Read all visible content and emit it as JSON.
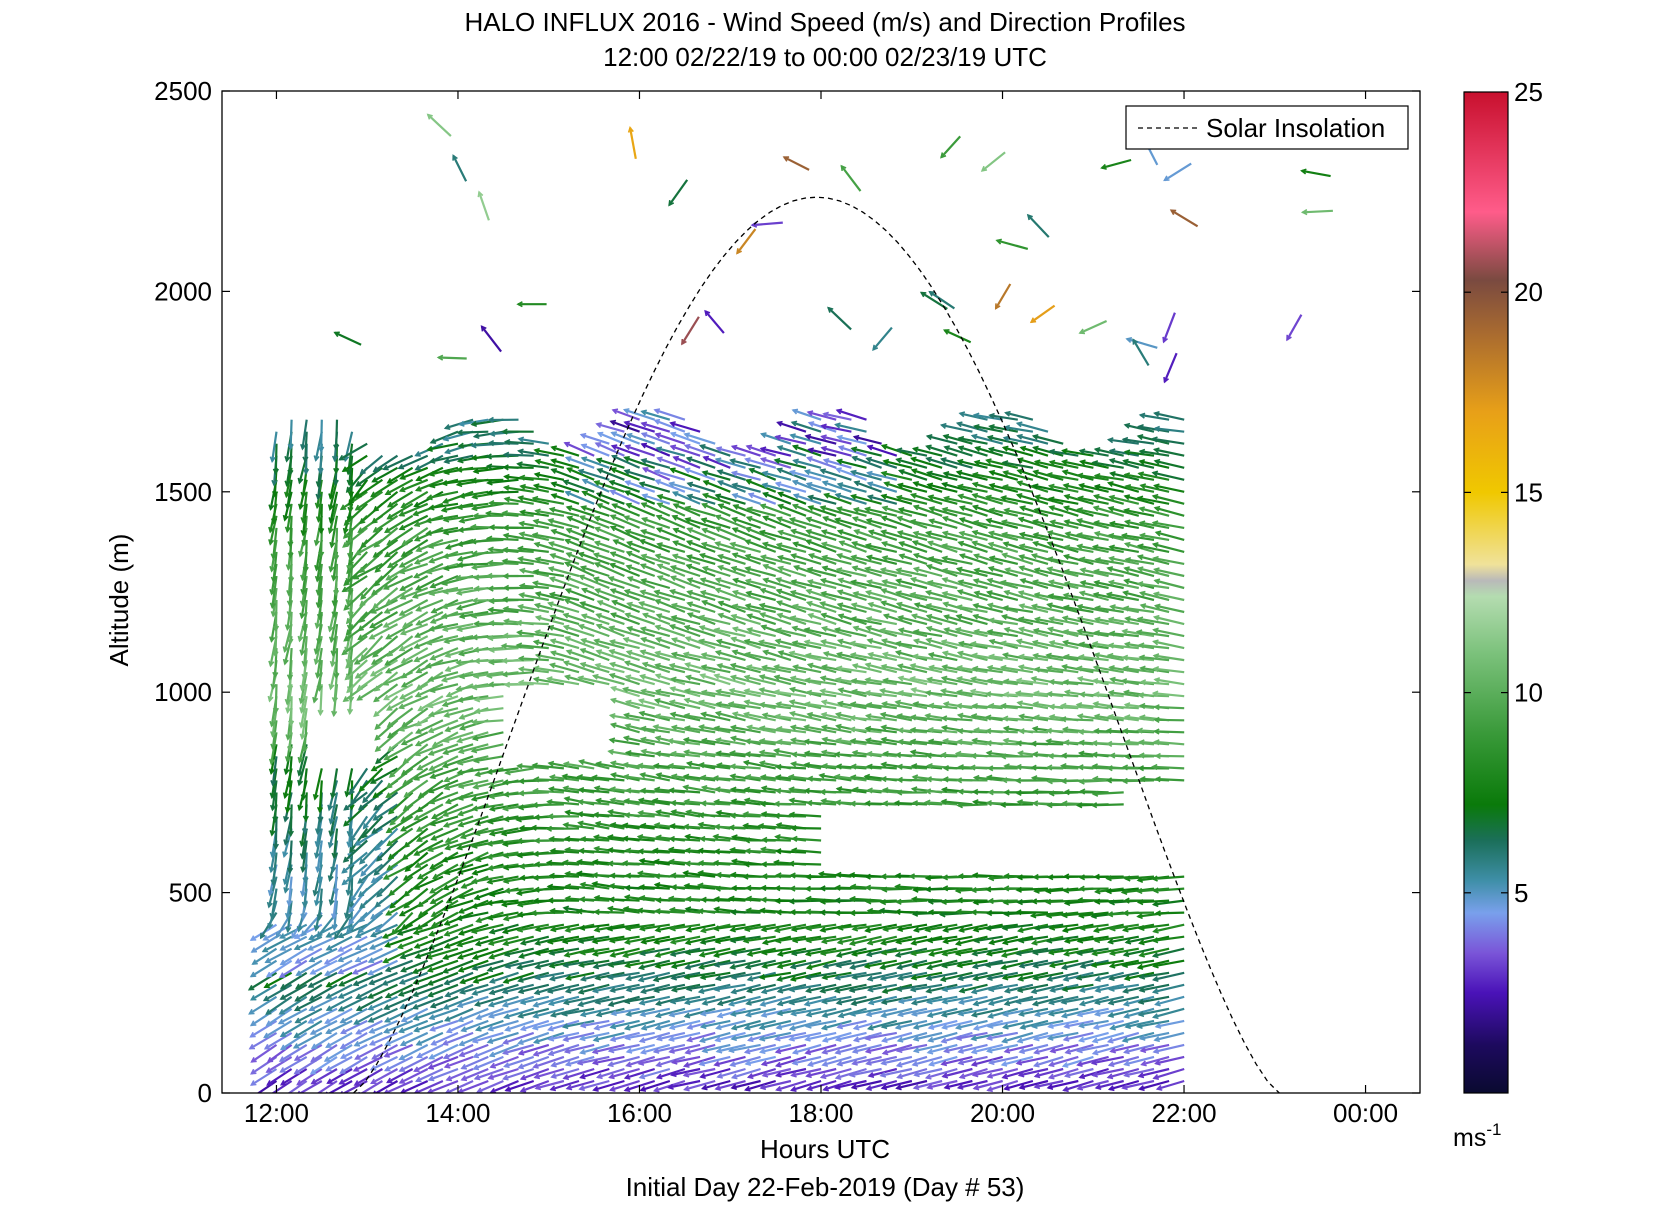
{
  "chart_data": {
    "type": "quiver",
    "title": "HALO INFLUX 2016 - Wind Speed (m/s) and Direction Profiles",
    "subtitle": "12:00 02/22/19 to 00:00 02/23/19  UTC",
    "xlabel": "Hours UTC",
    "footer": "Initial Day 22-Feb-2019 (Day # 53)",
    "ylabel": "Altitude (m)",
    "xlim": [
      11.4,
      0.6
    ],
    "x_range_hours": [
      11.4,
      24.6
    ],
    "ylim": [
      0,
      2500
    ],
    "xticks": [
      12,
      14,
      16,
      18,
      20,
      22,
      24
    ],
    "xtick_labels": [
      "12:00",
      "14:00",
      "16:00",
      "18:00",
      "20:00",
      "22:00",
      "00:00"
    ],
    "yticks": [
      0,
      500,
      1000,
      1500,
      2000,
      2500
    ],
    "ytick_labels": [
      "0",
      "500",
      "1000",
      "1500",
      "2000",
      "2500"
    ],
    "legend": {
      "label": "Solar Insolation",
      "position": "top-right",
      "line_style": "dashed",
      "color": "#000000"
    },
    "solar_insolation": {
      "start_hour": 12.85,
      "peak_hour": 18.0,
      "end_hour": 23.05,
      "peak_altitude": 2235
    },
    "colorbar": {
      "min": 0,
      "max": 25,
      "ticks": [
        5,
        10,
        15,
        20,
        25
      ],
      "tick_labels": [
        "5",
        "10",
        "15",
        "20",
        "25"
      ],
      "unit_base": "ms",
      "unit_exponent": "-1",
      "stops": [
        {
          "v": 0,
          "c": "#0a0a30"
        },
        {
          "v": 1.2,
          "c": "#1d0a5e"
        },
        {
          "v": 2.5,
          "c": "#4a12b8"
        },
        {
          "v": 3.5,
          "c": "#7a55d8"
        },
        {
          "v": 4.5,
          "c": "#79a0ec"
        },
        {
          "v": 5.3,
          "c": "#3f8fa8"
        },
        {
          "v": 6.3,
          "c": "#1b6f5a"
        },
        {
          "v": 7.2,
          "c": "#0a7a0a"
        },
        {
          "v": 9,
          "c": "#3a9a3a"
        },
        {
          "v": 11,
          "c": "#7cc27c"
        },
        {
          "v": 12.4,
          "c": "#b4dcb0"
        },
        {
          "v": 12.8,
          "c": "#b9b9b9"
        },
        {
          "v": 13.2,
          "c": "#f0e29a"
        },
        {
          "v": 15,
          "c": "#f0c800"
        },
        {
          "v": 17,
          "c": "#e8a018"
        },
        {
          "v": 19,
          "c": "#a86a30"
        },
        {
          "v": 20.3,
          "c": "#7a4a40"
        },
        {
          "v": 22,
          "c": "#ff5c8a"
        },
        {
          "v": 25,
          "c": "#c8102e"
        }
      ]
    },
    "wind_field": {
      "time_start_hour": 12.0,
      "time_step_hours": 0.1667,
      "num_profiles": 61,
      "altitude_start_m": 30,
      "altitude_step_m": 30,
      "max_altitude_m": 1650,
      "upper_gate_altitude_m": 1800,
      "speed_profile_m_s": [
        {
          "alt": 30,
          "speed": 3.0
        },
        {
          "alt": 150,
          "speed": 4.5
        },
        {
          "alt": 300,
          "speed": 6.5
        },
        {
          "alt": 380,
          "speed": 7.5
        },
        {
          "alt": 600,
          "speed": 8.0
        },
        {
          "alt": 1000,
          "speed": 10.5
        },
        {
          "alt": 1400,
          "speed": 9.0
        },
        {
          "alt": 1650,
          "speed": 6.0
        }
      ],
      "gap_regions": [
        {
          "t": [
            12.5,
            13.3
          ],
          "alt": [
            840,
            990
          ]
        },
        {
          "t": [
            14.6,
            15.9
          ],
          "alt": [
            840,
            1000
          ]
        },
        {
          "t": [
            18.1,
            22.5
          ],
          "alt": [
            560,
            700
          ]
        },
        {
          "t": [
            21.5,
            24.0
          ],
          "alt": [
            700,
            760
          ]
        }
      ]
    }
  }
}
